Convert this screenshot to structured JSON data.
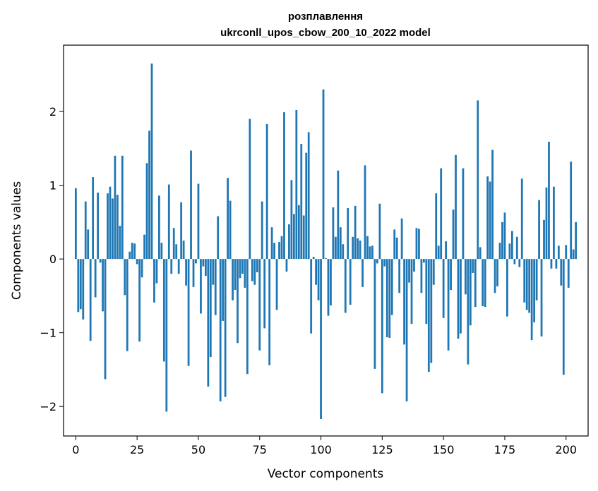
{
  "chart_data": {
    "type": "bar",
    "title_line1": "розплавлення",
    "title_line2": "ukrconll_upos_cbow_200_10_2022 model",
    "xlabel": "Vector components",
    "ylabel": "Components values",
    "xlim": [
      -5,
      209
    ],
    "ylim": [
      -2.4,
      2.9
    ],
    "xticks": [
      0,
      25,
      50,
      75,
      100,
      125,
      150,
      175,
      200
    ],
    "xtick_labels": [
      "0",
      "25",
      "50",
      "75",
      "100",
      "125",
      "150",
      "175",
      "200"
    ],
    "yticks": [
      -2,
      -1,
      0,
      1,
      2
    ],
    "ytick_labels": [
      "−2",
      "−1",
      "0",
      "1",
      "2"
    ],
    "color": "#1f77b4",
    "values": [
      0.96,
      -0.72,
      -0.68,
      -0.82,
      0.78,
      0.4,
      -1.11,
      1.11,
      -0.52,
      0.9,
      -0.05,
      -0.71,
      -1.63,
      0.89,
      0.98,
      0.82,
      1.4,
      0.87,
      0.45,
      1.4,
      -0.49,
      -1.25,
      0.1,
      0.22,
      0.21,
      -0.07,
      -1.12,
      -0.25,
      0.33,
      1.3,
      1.74,
      2.65,
      -0.59,
      -0.33,
      0.86,
      0.22,
      -1.39,
      -2.07,
      1.01,
      -0.2,
      0.42,
      0.2,
      -0.2,
      0.77,
      0.25,
      -0.36,
      -1.45,
      1.47,
      -0.38,
      -0.06,
      1.02,
      -0.74,
      -0.1,
      -0.23,
      -1.73,
      -1.33,
      -0.35,
      -0.76,
      0.58,
      -1.93,
      -0.84,
      -1.87,
      1.1,
      0.79,
      -0.56,
      -0.42,
      -1.14,
      -0.26,
      -0.2,
      -0.39,
      -1.56,
      1.9,
      -0.3,
      -0.35,
      -0.18,
      -1.24,
      0.78,
      -0.94,
      1.83,
      -1.44,
      0.43,
      0.22,
      -0.69,
      0.23,
      0.31,
      1.99,
      -0.17,
      0.47,
      1.07,
      0.61,
      2.02,
      0.73,
      1.56,
      0.59,
      1.44,
      1.72,
      -1.01,
      0.03,
      -0.35,
      -0.56,
      -2.17,
      2.3,
      0.01,
      -0.77,
      -0.63,
      0.7,
      0.3,
      1.2,
      0.43,
      0.2,
      -0.73,
      0.69,
      -0.62,
      0.3,
      0.72,
      0.28,
      0.25,
      -0.38,
      1.27,
      0.31,
      0.17,
      0.18,
      -1.49,
      -0.06,
      0.75,
      -1.82,
      -0.1,
      -1.06,
      -1.07,
      -0.76,
      0.4,
      0.29,
      -0.46,
      0.55,
      -1.16,
      -1.93,
      -0.32,
      -0.88,
      -0.17,
      0.42,
      0.41,
      -0.46,
      -0.05,
      -0.88,
      -1.53,
      -1.41,
      -0.35,
      0.89,
      0.18,
      1.23,
      -0.8,
      0.24,
      -1.24,
      -0.42,
      0.67,
      1.41,
      -1.08,
      -1.01,
      1.23,
      -0.48,
      -1.43,
      -0.9,
      -0.19,
      -0.65,
      2.15,
      0.16,
      -0.64,
      -0.65,
      1.12,
      1.05,
      1.48,
      -0.46,
      -0.37,
      0.22,
      0.5,
      0.63,
      -0.78,
      0.21,
      0.38,
      -0.07,
      0.3,
      -0.11,
      1.09,
      -0.59,
      -0.69,
      -0.73,
      -1.1,
      -0.86,
      -0.56,
      0.8,
      -1.05,
      0.53,
      0.97,
      1.59,
      -0.13,
      0.98,
      -0.13,
      0.18,
      -0.36,
      -1.57,
      0.19,
      -0.39,
      1.32,
      0.13,
      0.5
    ]
  }
}
